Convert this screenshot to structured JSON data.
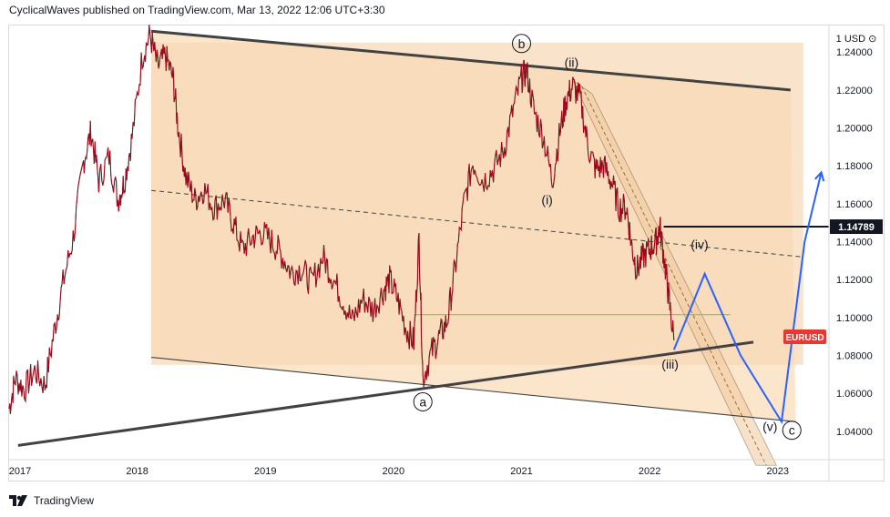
{
  "header": {
    "published_by": "CyclicalWaves published on TradingView.com, Mar 13, 2022 12:06 UTC+3:30"
  },
  "footer": {
    "brand": "TradingView"
  },
  "chart_data": {
    "type": "line",
    "symbol_label": "EURUSD",
    "axis_unit": "1 USD ⊙",
    "x_ticks": [
      "2017",
      "2018",
      "2019",
      "2020",
      "2021",
      "2022",
      "2023"
    ],
    "y_ticks": [
      "1.24000",
      "1.22000",
      "1.20000",
      "1.18000",
      "1.16000",
      "1.14000",
      "1.12000",
      "1.10000",
      "1.08000",
      "1.06000",
      "1.04000"
    ],
    "ylim": [
      1.025,
      1.254
    ],
    "xlim": [
      2017.0,
      2023.4
    ],
    "price_marker": {
      "value": 1.14789,
      "label": "1.14789",
      "color": "#131722"
    },
    "series": [
      {
        "values": [
          [
            2017.0,
            1.052
          ],
          [
            2017.05,
            1.068
          ],
          [
            2017.12,
            1.062
          ],
          [
            2017.2,
            1.072
          ],
          [
            2017.28,
            1.064
          ],
          [
            2017.35,
            1.092
          ],
          [
            2017.42,
            1.118
          ],
          [
            2017.5,
            1.142
          ],
          [
            2017.58,
            1.182
          ],
          [
            2017.64,
            1.198
          ],
          [
            2017.7,
            1.172
          ],
          [
            2017.78,
            1.185
          ],
          [
            2017.85,
            1.162
          ],
          [
            2017.9,
            1.172
          ],
          [
            2017.96,
            1.195
          ],
          [
            2018.04,
            1.238
          ],
          [
            2018.1,
            1.249
          ],
          [
            2018.16,
            1.232
          ],
          [
            2018.22,
            1.238
          ],
          [
            2018.28,
            1.226
          ],
          [
            2018.32,
            1.2
          ],
          [
            2018.38,
            1.174
          ],
          [
            2018.45,
            1.162
          ],
          [
            2018.52,
            1.168
          ],
          [
            2018.6,
            1.158
          ],
          [
            2018.68,
            1.162
          ],
          [
            2018.75,
            1.15
          ],
          [
            2018.82,
            1.136
          ],
          [
            2018.9,
            1.142
          ],
          [
            2018.97,
            1.145
          ],
          [
            2019.05,
            1.14
          ],
          [
            2019.12,
            1.134
          ],
          [
            2019.2,
            1.124
          ],
          [
            2019.28,
            1.126
          ],
          [
            2019.36,
            1.118
          ],
          [
            2019.45,
            1.132
          ],
          [
            2019.52,
            1.122
          ],
          [
            2019.6,
            1.11
          ],
          [
            2019.68,
            1.098
          ],
          [
            2019.76,
            1.11
          ],
          [
            2019.84,
            1.104
          ],
          [
            2019.92,
            1.114
          ],
          [
            2019.97,
            1.12
          ],
          [
            2020.03,
            1.11
          ],
          [
            2020.1,
            1.094
          ],
          [
            2020.16,
            1.087
          ],
          [
            2020.2,
            1.142
          ],
          [
            2020.23,
            1.068
          ],
          [
            2020.3,
            1.082
          ],
          [
            2020.36,
            1.09
          ],
          [
            2020.42,
            1.098
          ],
          [
            2020.48,
            1.125
          ],
          [
            2020.55,
            1.16
          ],
          [
            2020.62,
            1.182
          ],
          [
            2020.7,
            1.172
          ],
          [
            2020.78,
            1.178
          ],
          [
            2020.86,
            1.188
          ],
          [
            2020.93,
            1.208
          ],
          [
            2021.0,
            1.226
          ],
          [
            2021.04,
            1.23
          ],
          [
            2021.1,
            1.208
          ],
          [
            2021.17,
            1.196
          ],
          [
            2021.24,
            1.172
          ],
          [
            2021.3,
            1.198
          ],
          [
            2021.35,
            1.215
          ],
          [
            2021.4,
            1.222
          ],
          [
            2021.46,
            1.215
          ],
          [
            2021.52,
            1.19
          ],
          [
            2021.58,
            1.178
          ],
          [
            2021.64,
            1.18
          ],
          [
            2021.7,
            1.172
          ],
          [
            2021.76,
            1.158
          ],
          [
            2021.82,
            1.158
          ],
          [
            2021.86,
            1.138
          ],
          [
            2021.9,
            1.125
          ],
          [
            2021.95,
            1.132
          ],
          [
            2022.0,
            1.136
          ],
          [
            2022.05,
            1.14
          ],
          [
            2022.08,
            1.148
          ],
          [
            2022.12,
            1.128
          ],
          [
            2022.15,
            1.11
          ],
          [
            2022.19,
            1.088
          ]
        ],
        "color": "#d0021b"
      }
    ],
    "annotations": [
      {
        "text": "a",
        "x": 2020.23,
        "y": 1.0555
      },
      {
        "text": "b",
        "x": 2021.0,
        "y": 1.2445
      },
      {
        "text": "c",
        "x": 2023.11,
        "y": 1.0405
      },
      {
        "text": "(i)",
        "x": 2021.2,
        "y": 1.162
      },
      {
        "text": "(ii)",
        "x": 2021.39,
        "y": 1.2345
      },
      {
        "text": "(iii)",
        "x": 2022.16,
        "y": 1.0755
      },
      {
        "text": "(iv)",
        "x": 2022.39,
        "y": 1.1385
      },
      {
        "text": "(v)",
        "x": 2022.94,
        "y": 1.0425
      }
    ],
    "trendlines": [
      {
        "from": [
          2018.11,
          1.251
        ],
        "to": [
          2023.1,
          1.22
        ],
        "color": "#424242",
        "style": "thick"
      },
      {
        "from": [
          2017.07,
          1.0325
        ],
        "to": [
          2022.81,
          1.087
        ],
        "color": "#424242",
        "style": "thick"
      },
      {
        "from": [
          2018.11,
          1.079
        ],
        "to": [
          2023.14,
          1.045
        ],
        "color": "#424242",
        "style": "thin"
      },
      {
        "from": [
          2018.11,
          1.167
        ],
        "to": [
          2023.18,
          1.132
        ],
        "color": "#424242",
        "style": "dashed"
      },
      {
        "from": [
          2022.11,
          1.1479
        ],
        "to": [
          2023.4,
          1.1479
        ],
        "color": "#131722",
        "style": "thick"
      },
      {
        "from": [
          2020.16,
          1.1015
        ],
        "to": [
          2022.63,
          1.1015
        ],
        "color": "#8bc34a",
        "style": "thin"
      }
    ],
    "projection": {
      "color": "#2962ff",
      "path": [
        [
          2022.19,
          1.083
        ],
        [
          2022.43,
          1.123
        ],
        [
          2022.71,
          1.08
        ],
        [
          2023.03,
          1.045
        ],
        [
          2023.21,
          1.14
        ],
        [
          2023.34,
          1.1765
        ]
      ]
    },
    "fills": {
      "channel": "#fbe4c8",
      "box": "#f7d9b5"
    }
  }
}
